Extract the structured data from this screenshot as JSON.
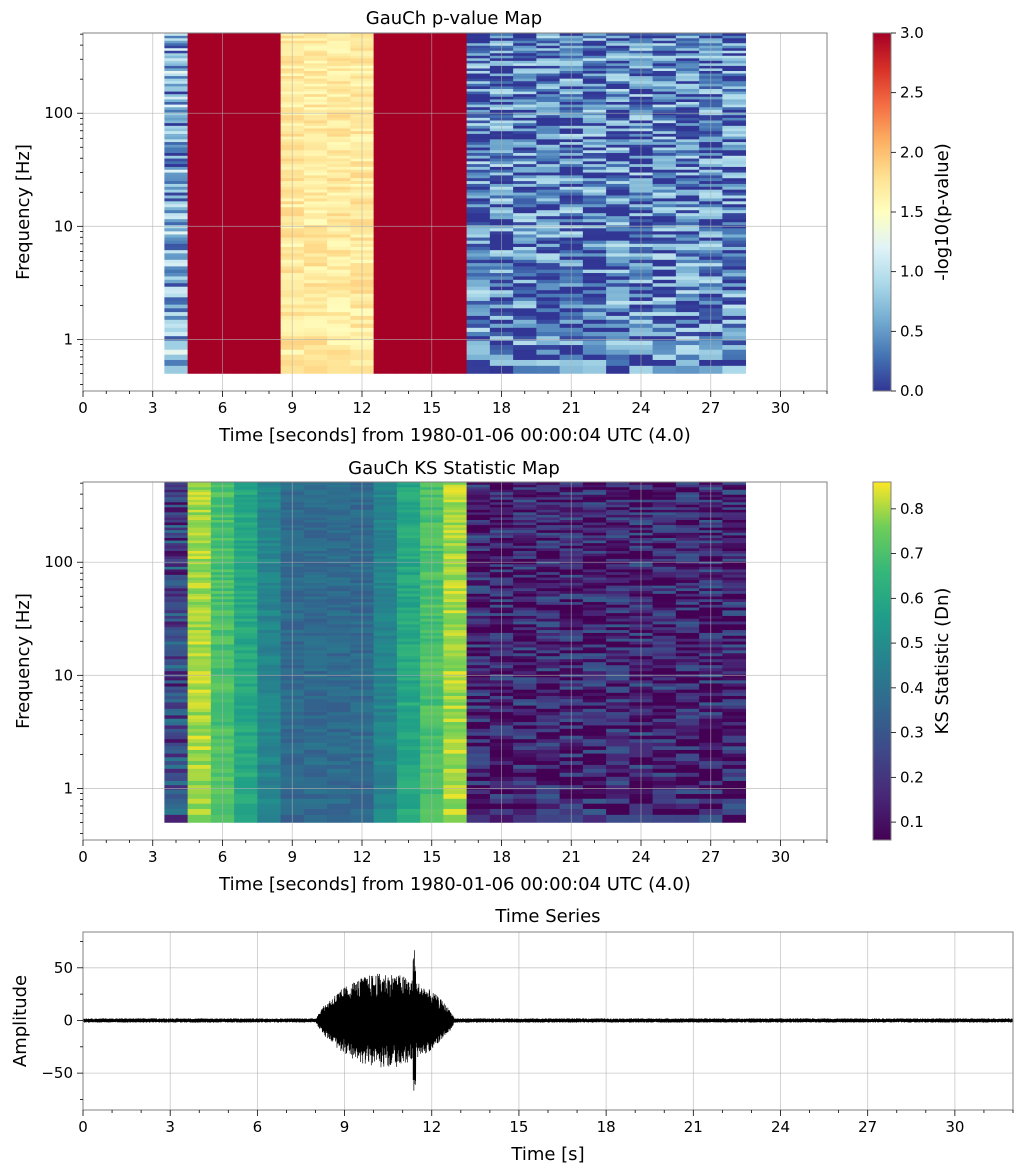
{
  "chart_data": [
    {
      "type": "heatmap",
      "title": "GauCh p-value Map",
      "xlabel": "Time [seconds] from 1980-01-06 00:00:04 UTC (4.0)",
      "ylabel": "Frequency [Hz]",
      "colorbar_label": "-log10(p-value)",
      "colormap": "RdYlBu_r",
      "xlim": [
        0,
        32
      ],
      "ylim": [
        0.35,
        512
      ],
      "yscale": "log",
      "xticks": [
        0,
        3,
        6,
        9,
        12,
        15,
        18,
        21,
        24,
        27,
        30
      ],
      "yticks": [
        1,
        10,
        100
      ],
      "ytick_labels": [
        "1",
        "10",
        "100"
      ],
      "clim": [
        0,
        3
      ],
      "cticks": [
        "0.0",
        "0.5",
        "1.0",
        "1.5",
        "2.0",
        "2.5",
        "3.0"
      ],
      "grid": true,
      "time_columns": [
        {
          "t0": 3.5,
          "t1": 4.5,
          "value": 0.6
        },
        {
          "t0": 4.5,
          "t1": 8.5,
          "value": 3.0
        },
        {
          "t0": 8.5,
          "t1": 12.5,
          "value": 1.7
        },
        {
          "t0": 12.5,
          "t1": 16.5,
          "value": 3.0
        },
        {
          "t0": 16.5,
          "t1": 28.5,
          "value": 0.35
        }
      ]
    },
    {
      "type": "heatmap",
      "title": "GauCh KS Statistic Map",
      "xlabel": "Time [seconds] from 1980-01-06 00:00:04 UTC (4.0)",
      "ylabel": "Frequency [Hz]",
      "colorbar_label": "KS Statistic (Dn)",
      "colormap": "viridis",
      "xlim": [
        0,
        32
      ],
      "ylim": [
        0.35,
        512
      ],
      "yscale": "log",
      "xticks": [
        0,
        3,
        6,
        9,
        12,
        15,
        18,
        21,
        24,
        27,
        30
      ],
      "yticks": [
        1,
        10,
        100
      ],
      "ytick_labels": [
        "1",
        "10",
        "100"
      ],
      "clim": [
        0.06,
        0.86
      ],
      "cticks": [
        "0.1",
        "0.2",
        "0.3",
        "0.4",
        "0.5",
        "0.6",
        "0.7",
        "0.8"
      ],
      "grid": true,
      "time_columns": [
        {
          "t0": 3.5,
          "t1": 4.5,
          "value": 0.25
        },
        {
          "t0": 4.5,
          "t1": 5.5,
          "value": 0.8
        },
        {
          "t0": 5.5,
          "t1": 6.5,
          "value": 0.7
        },
        {
          "t0": 6.5,
          "t1": 7.5,
          "value": 0.6
        },
        {
          "t0": 7.5,
          "t1": 8.5,
          "value": 0.47
        },
        {
          "t0": 8.5,
          "t1": 12.5,
          "value": 0.37
        },
        {
          "t0": 12.5,
          "t1": 13.5,
          "value": 0.47
        },
        {
          "t0": 13.5,
          "t1": 14.5,
          "value": 0.6
        },
        {
          "t0": 14.5,
          "t1": 15.5,
          "value": 0.7
        },
        {
          "t0": 15.5,
          "t1": 16.5,
          "value": 0.8
        },
        {
          "t0": 16.5,
          "t1": 28.5,
          "value": 0.15
        }
      ]
    },
    {
      "type": "line",
      "title": "Time Series",
      "xlabel": "Time [s]",
      "ylabel": "Amplitude",
      "xlim": [
        0,
        32
      ],
      "ylim": [
        -85,
        84
      ],
      "xticks": [
        0,
        3,
        6,
        9,
        12,
        15,
        18,
        21,
        24,
        27,
        30
      ],
      "yticks": [
        50,
        0,
        -50
      ],
      "ytick_labels": [
        "50",
        "0",
        "−50"
      ],
      "grid": true,
      "series": [
        {
          "baseline_noise_amplitude": 2,
          "burst": {
            "t_start": 8.0,
            "t_end": 12.8,
            "peak_amplitude": 78,
            "min_amplitude": -78,
            "peak_time": 11.4
          }
        }
      ]
    }
  ]
}
